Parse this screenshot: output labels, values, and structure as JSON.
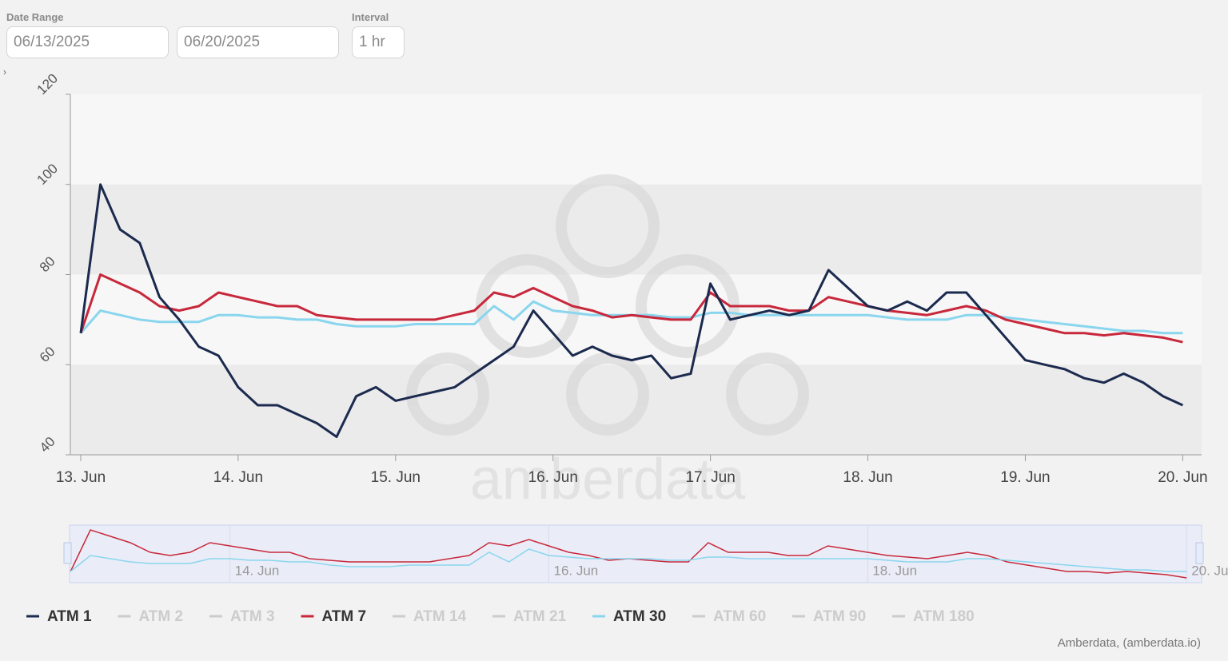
{
  "controls": {
    "date_range_label": "Date Range",
    "start_date": "06/13/2025",
    "end_date": "06/20/2025",
    "interval_label": "Interval",
    "interval": "1 hr"
  },
  "chart_data": {
    "type": "line",
    "watermark": "amberdata",
    "credits": "Amberdata, (amberdata.io)",
    "x": [
      0,
      0.125,
      0.25,
      0.375,
      0.5,
      0.625,
      0.75,
      0.875,
      1,
      1.125,
      1.25,
      1.375,
      1.5,
      1.625,
      1.75,
      1.875,
      2,
      2.125,
      2.25,
      2.375,
      2.5,
      2.625,
      2.75,
      2.875,
      3,
      3.125,
      3.25,
      3.375,
      3.5,
      3.625,
      3.75,
      3.875,
      4,
      4.125,
      4.25,
      4.375,
      4.5,
      4.625,
      4.75,
      4.875,
      5,
      5.125,
      5.25,
      5.375,
      5.5,
      5.625,
      5.75,
      5.875,
      6,
      6.125,
      6.25,
      6.375,
      6.5,
      6.625,
      6.75,
      6.875,
      7
    ],
    "xlim": [
      -0.066,
      7.12
    ],
    "xticks": [
      {
        "value": 0,
        "label": "13. Jun"
      },
      {
        "value": 1,
        "label": "14. Jun"
      },
      {
        "value": 2,
        "label": "15. Jun"
      },
      {
        "value": 3,
        "label": "16. Jun"
      },
      {
        "value": 4,
        "label": "17. Jun"
      },
      {
        "value": 5,
        "label": "18. Jun"
      },
      {
        "value": 6,
        "label": "19. Jun"
      },
      {
        "value": 7,
        "label": "20. Jun"
      }
    ],
    "ylim": [
      40,
      120
    ],
    "yticks": [
      40,
      60,
      80,
      100,
      120
    ],
    "bands": [
      [
        40,
        60
      ],
      [
        80,
        100
      ]
    ],
    "series": [
      {
        "name": "ATM 1",
        "color": "#1b2a4e",
        "visible": true,
        "values": [
          67,
          100,
          90,
          87,
          75,
          70,
          64,
          62,
          55,
          51,
          51,
          49,
          47,
          44,
          53,
          55,
          52,
          53,
          54,
          55,
          58,
          61,
          64,
          72,
          67,
          62,
          64,
          62,
          61,
          62,
          57,
          58,
          78,
          70,
          71,
          72,
          71,
          72,
          81,
          77,
          73,
          72,
          74,
          72,
          76,
          76,
          71,
          66,
          61,
          60,
          59,
          57,
          56,
          58,
          56,
          53,
          51
        ]
      },
      {
        "name": "ATM 2",
        "color": "#cccccc",
        "visible": false
      },
      {
        "name": "ATM 3",
        "color": "#cccccc",
        "visible": false
      },
      {
        "name": "ATM 7",
        "color": "#c8283b",
        "visible": true,
        "values": [
          67,
          80,
          78,
          76,
          73,
          72,
          73,
          76,
          75,
          74,
          73,
          73,
          71,
          70.5,
          70,
          70,
          70,
          70,
          70,
          71,
          72,
          76,
          75,
          77,
          75,
          73,
          72,
          70.5,
          71,
          70.5,
          70,
          70,
          76,
          73,
          73,
          73,
          72,
          72,
          75,
          74,
          73,
          72,
          71.5,
          71,
          72,
          73,
          72,
          70,
          69,
          68,
          67,
          67,
          66.5,
          67,
          66.5,
          66,
          65
        ]
      },
      {
        "name": "ATM 14",
        "color": "#cccccc",
        "visible": false
      },
      {
        "name": "ATM 21",
        "color": "#cccccc",
        "visible": false
      },
      {
        "name": "ATM 30",
        "color": "#8ad6ee",
        "visible": true,
        "values": [
          67,
          72,
          71,
          70,
          69.5,
          69.5,
          69.5,
          71,
          71,
          70.5,
          70.5,
          70,
          70,
          69,
          68.5,
          68.5,
          68.5,
          69,
          69,
          69,
          69,
          73,
          70,
          74,
          72,
          71.5,
          71,
          71,
          71,
          71,
          70.5,
          70.5,
          71.5,
          71.5,
          71,
          71,
          71,
          71,
          71,
          71,
          71,
          70.5,
          70,
          70,
          70,
          71,
          71,
          70.5,
          70,
          69.5,
          69,
          68.5,
          68,
          67.5,
          67.5,
          67,
          67
        ]
      },
      {
        "name": "ATM 60",
        "color": "#cccccc",
        "visible": false
      },
      {
        "name": "ATM 90",
        "color": "#cccccc",
        "visible": false
      },
      {
        "name": "ATM 180",
        "color": "#cccccc",
        "visible": false
      }
    ]
  }
}
